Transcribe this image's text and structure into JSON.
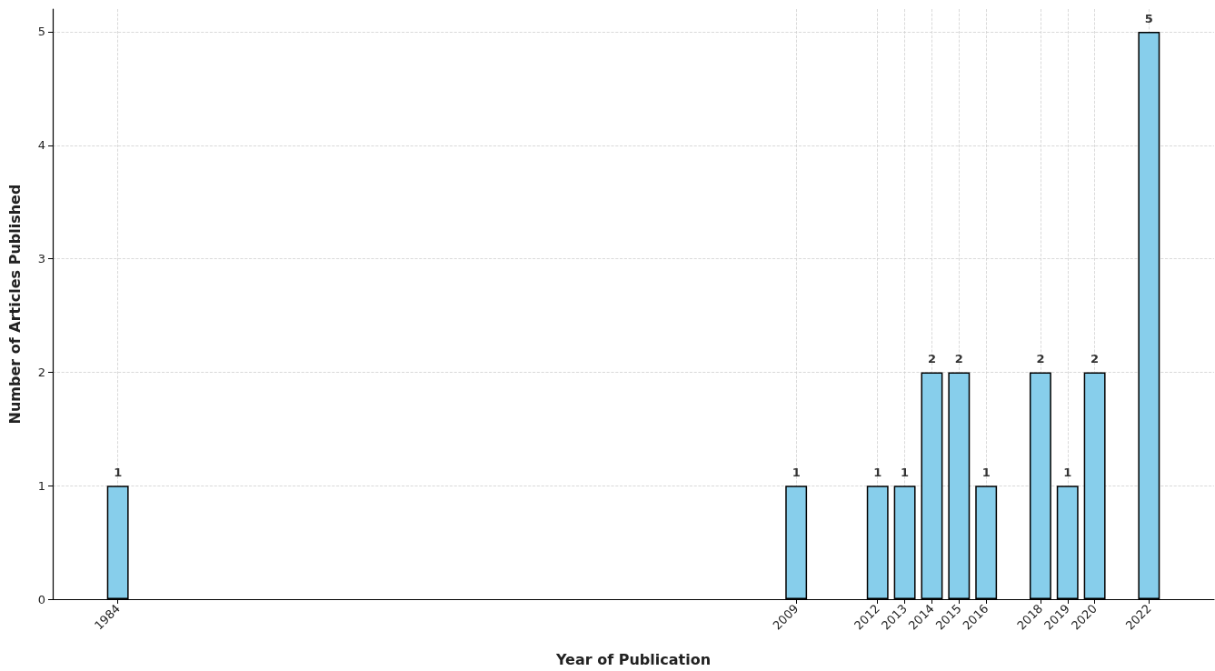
{
  "chart_data": {
    "type": "bar",
    "xlabel": "Year of Publication",
    "ylabel": "Number of Articles Published",
    "x": [
      1984,
      2009,
      2012,
      2013,
      2014,
      2015,
      2016,
      2018,
      2019,
      2020,
      2022
    ],
    "values": [
      1,
      1,
      1,
      1,
      2,
      2,
      1,
      2,
      1,
      2,
      5
    ],
    "color": "#87ceeb",
    "xlim": [
      1981.6,
      2024.4
    ],
    "xticks": [
      1984,
      2009,
      2012,
      2013,
      2014,
      2015,
      2016,
      2018,
      2019,
      2020,
      2022
    ],
    "ylim": [
      0,
      5.2
    ],
    "yticks": [
      0,
      1,
      2,
      3,
      4,
      5
    ],
    "grid": true,
    "data_labels": true
  }
}
